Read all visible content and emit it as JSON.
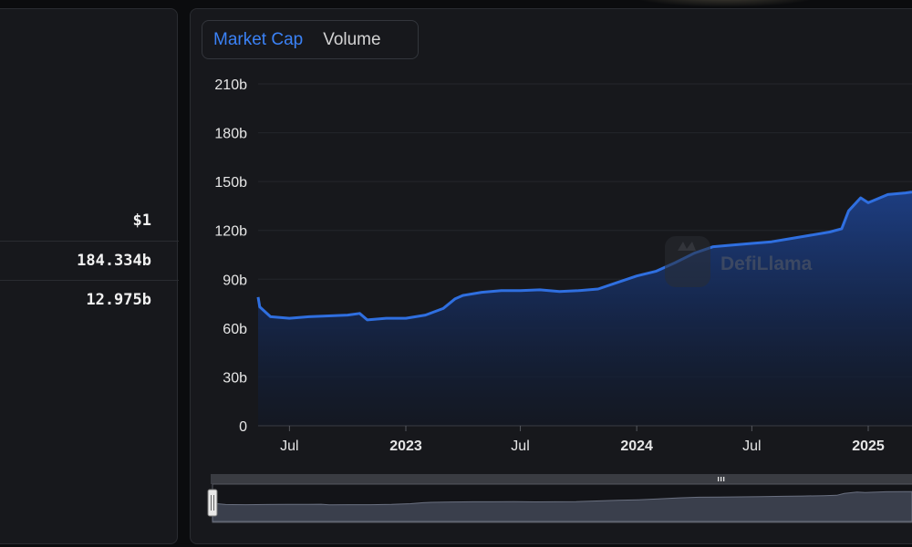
{
  "stats": {
    "price": "$1",
    "market_cap": "184.334b",
    "volume": "12.975b"
  },
  "tabs": [
    "Market Cap",
    "Volume"
  ],
  "watermark": "DefiLlama",
  "colors": {
    "accent": "#3b82f6",
    "line": "#2f6fe0",
    "panel": "#17181c",
    "background": "#0b0c0e"
  },
  "chart_data": {
    "type": "area",
    "series": [
      {
        "x": [
          "2022-05-01",
          "2022-05-15",
          "2022-06-01",
          "2022-07-01",
          "2022-08-01",
          "2022-09-01",
          "2022-10-01",
          "2022-10-20",
          "2022-11-01",
          "2022-12-01",
          "2023-01-01",
          "2023-02-01",
          "2023-03-01",
          "2023-03-20",
          "2023-04-01",
          "2023-05-01",
          "2023-06-01",
          "2023-07-01",
          "2023-08-01",
          "2023-09-01",
          "2023-10-01",
          "2023-11-01",
          "2023-12-01",
          "2024-01-01",
          "2024-02-01",
          "2024-03-01",
          "2024-04-01",
          "2024-05-01",
          "2024-06-01",
          "2024-07-01",
          "2024-08-01",
          "2024-09-01",
          "2024-10-01",
          "2024-11-01",
          "2024-11-20",
          "2024-12-01",
          "2024-12-20",
          "2025-01-01",
          "2025-02-01",
          "2025-03-01"
        ],
        "values": [
          79,
          73,
          67,
          66,
          67,
          67.5,
          68,
          69,
          65,
          66,
          66,
          68,
          72,
          78,
          80,
          82,
          83,
          83,
          83.5,
          82.5,
          83,
          84,
          88,
          92,
          95,
          100,
          106,
          110,
          111,
          112,
          113,
          115,
          117,
          119,
          121,
          132,
          140,
          137,
          142,
          143
        ]
      }
    ],
    "y_ticks": [
      "0",
      "30b",
      "60b",
      "90b",
      "120b",
      "150b",
      "180b",
      "210b"
    ],
    "ylim": [
      0,
      210
    ],
    "x_ticks": [
      {
        "label": "Jul",
        "date": "2022-07-01",
        "bold": false
      },
      {
        "label": "2023",
        "date": "2023-01-01",
        "bold": true
      },
      {
        "label": "Jul",
        "date": "2023-07-01",
        "bold": false
      },
      {
        "label": "2024",
        "date": "2024-01-01",
        "bold": true
      },
      {
        "label": "Jul",
        "date": "2024-07-01",
        "bold": false
      },
      {
        "label": "2025",
        "date": "2025-01-01",
        "bold": true
      }
    ],
    "grid": true
  }
}
